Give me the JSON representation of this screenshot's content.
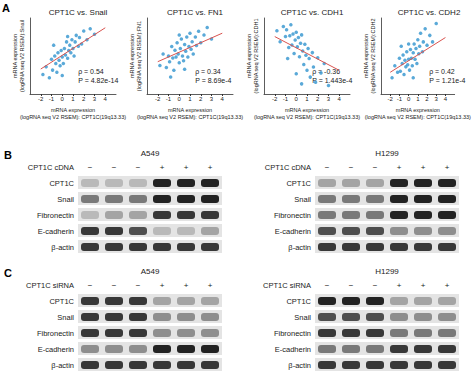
{
  "chart_data": [
    {
      "type": "scatter",
      "title": "CPT1C vs. Snail",
      "xlabel": "mRNA expression\n(logRNA seq V2 RSEM): CPT1C(19q13.33)",
      "ylabel": "mRNA expression\n(logRNA seq V2 RSEM):Snail",
      "x": [
        -1.8,
        -1.5,
        -1.2,
        -1.0,
        -0.9,
        -0.7,
        -0.6,
        -0.5,
        -0.4,
        -0.3,
        -0.2,
        -0.1,
        0,
        0.1,
        0.2,
        0.3,
        0.4,
        0.5,
        0.6,
        0.7,
        0.8,
        0.9,
        1.0,
        1.1,
        1.2,
        1.3,
        1.5,
        1.6,
        1.8,
        2.0,
        2.3,
        2.6,
        3.0,
        -0.8,
        0.0,
        0.5
      ],
      "values": [
        -1.2,
        -0.5,
        -1.5,
        0.2,
        -0.8,
        0.5,
        -0.2,
        -1.0,
        0.8,
        0.1,
        -0.4,
        1.0,
        0.4,
        -0.2,
        1.2,
        0.6,
        1.8,
        0.3,
        1.0,
        1.5,
        0.8,
        2.0,
        1.2,
        0.5,
        1.8,
        2.4,
        1.4,
        2.2,
        1.6,
        2.8,
        2.0,
        3.0,
        2.5,
        1.5,
        -1.3,
        2.3
      ],
      "color": "#3d9ad1",
      "fit": {
        "x": [
          -2,
          4
        ],
        "values": [
          -0.7,
          3.1
        ],
        "color": "#d9534f"
      },
      "annotations": [
        "ρ = 0.54",
        "P = 4.82e-14"
      ],
      "xlim": [
        -3,
        5
      ],
      "xticks": [
        -2,
        -1,
        0,
        1,
        2,
        3,
        4
      ],
      "ylim": [
        -3,
        4
      ],
      "tick_labels": "x",
      "grid": false
    },
    {
      "type": "scatter",
      "title": "CPT1C vs. FN1",
      "xlabel": "mRNA expression\n(logRNA seq V2 RSEM): CPT1C(19q13.33)",
      "ylabel": "mRNA expression\n(logRNA seq V2 RSEM):FN1",
      "x": [
        -1.8,
        -1.5,
        -1.2,
        -1.0,
        -0.9,
        -0.7,
        -0.6,
        -0.5,
        -0.4,
        -0.3,
        -0.2,
        -0.1,
        0,
        0.1,
        0.2,
        0.3,
        0.4,
        0.5,
        0.6,
        0.7,
        0.8,
        0.9,
        1.0,
        1.1,
        1.2,
        1.3,
        1.5,
        1.6,
        1.8,
        2.0,
        2.3,
        2.6,
        3.0,
        -0.8,
        0.0,
        0.5
      ],
      "values": [
        6.0,
        7.2,
        5.8,
        7.0,
        6.4,
        8.0,
        6.8,
        5.5,
        7.6,
        6.9,
        8.4,
        7.2,
        6.3,
        7.8,
        8.8,
        7.0,
        6.5,
        8.2,
        7.5,
        9.0,
        6.9,
        8.0,
        9.4,
        7.7,
        8.5,
        7.2,
        9.0,
        8.1,
        9.6,
        8.4,
        9.2,
        10.0,
        8.8,
        4.8,
        9.2,
        5.6
      ],
      "color": "#3d9ad1",
      "fit": {
        "x": [
          -2,
          4
        ],
        "values": [
          6.4,
          9.4
        ],
        "color": "#d9534f"
      },
      "annotations": [
        "ρ = 0.34",
        "P = 8.69e-4"
      ],
      "xlim": [
        -3,
        5
      ],
      "xticks": [
        -2,
        -1,
        0,
        1,
        2,
        3,
        4
      ],
      "ylim": [
        3,
        11
      ],
      "tick_labels": "x",
      "grid": false
    },
    {
      "type": "scatter",
      "title": "CPT1C vs. CDH1",
      "xlabel": "mRNA expression\n(logRNA seq V2 RSEM): CPT1C(19q13.33)",
      "ylabel": "mRNA expression\n(logRNA seq V2 RSEM):CDH1",
      "x": [
        -1.8,
        -1.5,
        -1.2,
        -1.0,
        -0.9,
        -0.7,
        -0.6,
        -0.5,
        -0.4,
        -0.3,
        -0.2,
        -0.1,
        0,
        0.1,
        0.2,
        0.3,
        0.4,
        0.5,
        0.6,
        0.7,
        0.8,
        0.9,
        1.0,
        1.1,
        1.2,
        1.3,
        1.5,
        1.6,
        1.8,
        2.0,
        2.3,
        2.6,
        3.0,
        -0.8,
        0.0,
        0.5
      ],
      "values": [
        3.5,
        2.2,
        4.0,
        2.8,
        3.6,
        1.5,
        2.9,
        4.2,
        1.8,
        3.1,
        0.8,
        2.4,
        3.3,
        1.6,
        2.7,
        0.4,
        2.0,
        3.0,
        1.1,
        -0.5,
        1.9,
        0.6,
        -1.2,
        1.4,
        0.2,
        -2.0,
        0.9,
        -0.8,
        -2.6,
        0.3,
        -1.5,
        -0.4,
        -3.0,
        0.2,
        -1.6,
        -2.8
      ],
      "color": "#3d9ad1",
      "fit": {
        "x": [
          -2,
          4
        ],
        "values": [
          2.8,
          -1.2
        ],
        "color": "#d9534f"
      },
      "annotations": [
        "ρ = -0.36",
        "P = 1.443e-4"
      ],
      "xlim": [
        -3,
        5
      ],
      "xticks": [
        -2,
        -1,
        0,
        1,
        2,
        3,
        4
      ],
      "ylim": [
        -4,
        5
      ],
      "tick_labels": "x",
      "grid": false
    },
    {
      "type": "scatter",
      "title": "CPT1C vs. CDH2",
      "xlabel": "mRNA expression\n(logRNA seq V2 RSEM): CPT1C(19q13.33)",
      "ylabel": "mRNA expression\n(logRNA seq V2 RSEM):CDH2",
      "x": [
        -1.8,
        -1.5,
        -1.2,
        -1.0,
        -0.9,
        -0.7,
        -0.6,
        -0.5,
        -0.4,
        -0.3,
        -0.2,
        -0.1,
        0,
        0.1,
        0.2,
        0.3,
        0.4,
        0.5,
        0.6,
        0.7,
        0.8,
        0.9,
        1.0,
        1.1,
        1.2,
        1.3,
        1.5,
        1.6,
        1.8,
        2.0,
        2.3,
        2.6,
        3.0,
        -0.8,
        0.0,
        0.5
      ],
      "values": [
        -1.5,
        -0.4,
        -1.0,
        0.3,
        -0.9,
        -0.2,
        0.6,
        -1.2,
        0.1,
        -0.5,
        0.9,
        -0.3,
        0.2,
        -0.8,
        1.1,
        0.3,
        -0.4,
        0.8,
        1.6,
        0.2,
        1.2,
        -0.2,
        2.0,
        0.7,
        1.4,
        2.6,
        0.9,
        1.8,
        3.0,
        1.5,
        2.4,
        1.8,
        3.5,
        1.4,
        1.6,
        -1.5
      ],
      "color": "#3d9ad1",
      "fit": {
        "x": [
          -2,
          4
        ],
        "values": [
          -1.0,
          2.2
        ],
        "color": "#d9534f"
      },
      "annotations": [
        "ρ = 0.42",
        "P = 1.21e-4"
      ],
      "xlim": [
        -3,
        5
      ],
      "xticks": [
        -2,
        -1,
        0,
        1,
        2,
        3,
        4
      ],
      "ylim": [
        -3,
        4
      ],
      "tick_labels": "x",
      "grid": false
    }
  ],
  "figure": {
    "panel_a": {
      "label": "A"
    },
    "blot_panels": [
      {
        "label": "B",
        "treatment": "CPT1C cDNA",
        "blots": [
          {
            "cell_line": "A549",
            "lanes": [
              "−",
              "−",
              "−",
              "+",
              "+",
              "+"
            ],
            "rows": [
              {
                "name": "CPT1C",
                "intensity": [
                  0.2,
                  0.2,
                  0.2,
                  0.9,
                  0.9,
                  0.9
                ]
              },
              {
                "name": "Snail",
                "intensity": [
                  0.5,
                  0.5,
                  0.5,
                  0.9,
                  0.9,
                  0.9
                ]
              },
              {
                "name": "Fibronectin",
                "intensity": [
                  0.2,
                  0.3,
                  0.3,
                  0.8,
                  0.8,
                  0.8
                ]
              },
              {
                "name": "E-cadherin",
                "intensity": [
                  0.8,
                  0.8,
                  0.7,
                  0.2,
                  0.2,
                  0.3
                ]
              },
              {
                "name": "β-actin",
                "intensity": [
                  0.8,
                  0.8,
                  0.8,
                  0.8,
                  0.8,
                  0.8
                ]
              }
            ]
          },
          {
            "cell_line": "H1299",
            "lanes": [
              "−",
              "−",
              "−",
              "+",
              "+",
              "+"
            ],
            "rows": [
              {
                "name": "CPT1C",
                "intensity": [
                  0.3,
                  0.3,
                  0.3,
                  0.9,
                  0.9,
                  0.9
                ]
              },
              {
                "name": "Snail",
                "intensity": [
                  0.5,
                  0.5,
                  0.5,
                  0.9,
                  0.9,
                  0.9
                ]
              },
              {
                "name": "Fibronectin",
                "intensity": [
                  0.5,
                  0.5,
                  0.5,
                  0.9,
                  0.9,
                  0.9
                ]
              },
              {
                "name": "E-cadherin",
                "intensity": [
                  0.7,
                  0.7,
                  0.7,
                  0.4,
                  0.4,
                  0.4
                ]
              },
              {
                "name": "β-actin",
                "intensity": [
                  0.8,
                  0.8,
                  0.8,
                  0.8,
                  0.8,
                  0.8
                ]
              }
            ]
          }
        ]
      },
      {
        "label": "C",
        "treatment": "CPT1C siRNA",
        "blots": [
          {
            "cell_line": "A549",
            "lanes": [
              "−",
              "−",
              "−",
              "+",
              "+",
              "+"
            ],
            "rows": [
              {
                "name": "CPT1C",
                "intensity": [
                  0.8,
                  0.8,
                  0.8,
                  0.3,
                  0.3,
                  0.3
                ]
              },
              {
                "name": "Snail",
                "intensity": [
                  0.8,
                  0.8,
                  0.8,
                  0.4,
                  0.4,
                  0.4
                ]
              },
              {
                "name": "Fibronectin",
                "intensity": [
                  0.8,
                  0.8,
                  0.8,
                  0.4,
                  0.4,
                  0.4
                ]
              },
              {
                "name": "E-cadherin",
                "intensity": [
                  0.4,
                  0.4,
                  0.4,
                  0.9,
                  0.9,
                  0.9
                ]
              },
              {
                "name": "β-actin",
                "intensity": [
                  0.8,
                  0.8,
                  0.8,
                  0.8,
                  0.8,
                  0.8
                ]
              }
            ]
          },
          {
            "cell_line": "H1299",
            "lanes": [
              "−",
              "−",
              "−",
              "+",
              "+",
              "+"
            ],
            "rows": [
              {
                "name": "CPT1C",
                "intensity": [
                  0.9,
                  0.9,
                  0.9,
                  0.3,
                  0.3,
                  0.3
                ]
              },
              {
                "name": "Snail",
                "intensity": [
                  0.7,
                  0.7,
                  0.7,
                  0.4,
                  0.4,
                  0.4
                ]
              },
              {
                "name": "Fibronectin",
                "intensity": [
                  0.8,
                  0.8,
                  0.8,
                  0.5,
                  0.5,
                  0.5
                ]
              },
              {
                "name": "E-cadherin",
                "intensity": [
                  0.5,
                  0.5,
                  0.5,
                  0.8,
                  0.8,
                  0.8
                ]
              },
              {
                "name": "β-actin",
                "intensity": [
                  0.8,
                  0.8,
                  0.8,
                  0.8,
                  0.8,
                  0.8
                ]
              }
            ]
          }
        ]
      }
    ]
  }
}
